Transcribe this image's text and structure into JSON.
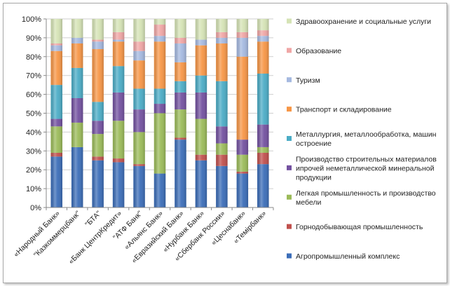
{
  "chart_data": {
    "type": "bar",
    "stacked": true,
    "percent": true,
    "ylim": [
      0,
      100
    ],
    "yticks": [
      "0%",
      "10%",
      "20%",
      "30%",
      "40%",
      "50%",
      "60%",
      "70%",
      "80%",
      "90%",
      "100%"
    ],
    "grid": true,
    "legend_position": "right",
    "categories": [
      "«Народный Банк»",
      "\"Казкоммерцбанк\"",
      "\"БТА\"",
      "«Банк ЦентрКредит»",
      "\"АТФ Банк\"",
      "«Альянс Банк»",
      "«Евразийский Банк»",
      "«Нурбанк Банк»",
      "«Сбербанк России»",
      "«Цеснабанк»",
      "«Темірбанк»"
    ],
    "series": [
      {
        "name": "Агропромышленный комплекс",
        "color": "#3b6db8",
        "values": [
          27,
          32,
          25,
          24,
          22,
          18,
          36,
          25,
          22,
          18,
          23
        ]
      },
      {
        "name": "Горнодобывающая промышленность",
        "color": "#c0504d",
        "values": [
          2,
          0,
          2,
          2,
          1,
          0,
          1,
          3,
          6,
          1,
          6
        ]
      },
      {
        "name": "Легкая промышленность и производство мебели",
        "color": "#9bbb59",
        "values": [
          14,
          13,
          12,
          20,
          17,
          32,
          15,
          19,
          6,
          9,
          3
        ]
      },
      {
        "name": "Производство строительных материалов ипрочей неметаллической минеральной продукции",
        "color": "#7351a0",
        "values": [
          4,
          13,
          7,
          15,
          12,
          5,
          9,
          14,
          9,
          8,
          12
        ]
      },
      {
        "name": "Металлургия, металлообработка, машин остроение",
        "color": "#4bacc6",
        "values": [
          18,
          16,
          10,
          14,
          11,
          8,
          6,
          9,
          24,
          0,
          27
        ]
      },
      {
        "name": "Транспорт и складирование",
        "color": "#f79646",
        "values": [
          18,
          13,
          28,
          13,
          15,
          25,
          10,
          16,
          20,
          44,
          17
        ]
      },
      {
        "name": "Туризм",
        "color": "#a5b9e0",
        "values": [
          3,
          3,
          4,
          1,
          5,
          3,
          10,
          3,
          3,
          10,
          3
        ]
      },
      {
        "name": "Образование",
        "color": "#f0a6a5",
        "values": [
          1,
          0,
          1,
          4,
          5,
          6,
          3,
          0,
          3,
          3,
          3
        ]
      },
      {
        "name": "Здравоохранение и социальные услуги",
        "color": "#d5e3b5",
        "values": [
          13,
          10,
          11,
          7,
          12,
          3,
          10,
          11,
          7,
          7,
          6
        ]
      }
    ]
  }
}
